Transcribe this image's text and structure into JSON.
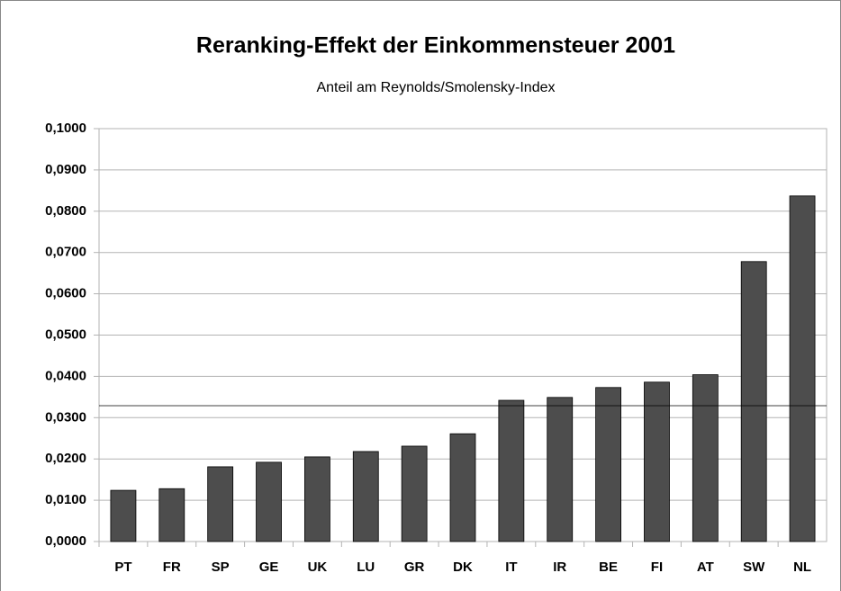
{
  "chart_data": {
    "type": "bar",
    "title": "Reranking-Effekt der Einkommensteuer 2001",
    "subtitle": "Anteil am Reynolds/Smolensky-Index",
    "categories": [
      "PT",
      "FR",
      "SP",
      "GE",
      "UK",
      "LU",
      "GR",
      "DK",
      "IT",
      "IR",
      "BE",
      "FI",
      "AT",
      "SW",
      "NL"
    ],
    "values": [
      0.0124,
      0.0128,
      0.0181,
      0.0192,
      0.0205,
      0.0218,
      0.0231,
      0.0261,
      0.0342,
      0.0349,
      0.0373,
      0.0386,
      0.0404,
      0.0678,
      0.0837
    ],
    "color": "#4d4d4d",
    "reference_line": 0.0329,
    "ylim": [
      0,
      0.1
    ],
    "yticks": [
      {
        "value": 0,
        "label": "0,0000"
      },
      {
        "value": 0.01,
        "label": "0,0100"
      },
      {
        "value": 0.02,
        "label": "0,0200"
      },
      {
        "value": 0.03,
        "label": "0,0300"
      },
      {
        "value": 0.04,
        "label": "0,0400"
      },
      {
        "value": 0.05,
        "label": "0,0500"
      },
      {
        "value": 0.06,
        "label": "0,0600"
      },
      {
        "value": 0.07,
        "label": "0,0700"
      },
      {
        "value": 0.08,
        "label": "0,0800"
      },
      {
        "value": 0.09,
        "label": "0,0900"
      },
      {
        "value": 0.1,
        "label": "0,1000"
      }
    ],
    "grid": true
  }
}
